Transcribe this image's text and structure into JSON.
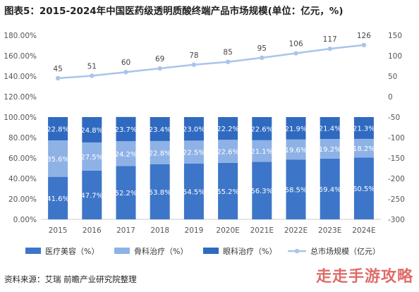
{
  "title": "图表5：2015-2024年中国医药级透明质酸终端产品市场规模(单位：亿元，%)",
  "source": "资料来源：艾瑞 前瞻产业研究院整理",
  "watermark": "走走手游攻略",
  "colors": {
    "medical_beauty": "#3d76c8",
    "orthopedic": "#8eb2e6",
    "ophthalmic": "#2f6ac0",
    "total_line": "#a9c4ec",
    "axis_text": "#555555"
  },
  "chart_data": {
    "type": "bar",
    "stacked": true,
    "categories": [
      "2015",
      "2016",
      "2017",
      "2018",
      "2019",
      "2020E",
      "2021E",
      "2022E",
      "2023E",
      "2024E"
    ],
    "y_left": {
      "ticks": [
        "0.00%",
        "20.00%",
        "40.00%",
        "60.00%",
        "80.00%",
        "100.00%",
        "120.00%",
        "140.00%",
        "160.00%",
        "180.00%"
      ],
      "range": [
        0,
        180
      ]
    },
    "y_right": {
      "ticks": [
        "150",
        "100",
        "50",
        "0",
        "-50",
        "-100",
        "-150",
        "-200",
        "-250",
        "-300"
      ],
      "range": [
        -300,
        150
      ]
    },
    "series": [
      {
        "name": "医疗美容（%）",
        "values": [
          41.6,
          47.7,
          52.2,
          53.8,
          54.5,
          55.2,
          56.3,
          58.5,
          59.4,
          60.5
        ],
        "labels": [
          "41.6%",
          "47.7%",
          "52.2%",
          "53.8%",
          "54.5%",
          "55.2%",
          "56.3%",
          "58.5%",
          "59.4%",
          "60.5%"
        ]
      },
      {
        "name": "骨科治疗（%）",
        "values": [
          35.6,
          27.5,
          24.2,
          22.8,
          22.5,
          22.6,
          21.1,
          19.6,
          19.2,
          18.2
        ],
        "labels": [
          "35.6%",
          "27.5%",
          "24.2%",
          "22.8%",
          "22.5%",
          "22.6%",
          "21.1%",
          "19.6%",
          "19.2%",
          "18.2%"
        ]
      },
      {
        "name": "眼科治疗（%）",
        "values": [
          22.8,
          24.8,
          23.7,
          23.4,
          23.0,
          22.2,
          22.6,
          21.9,
          21.4,
          21.3
        ],
        "labels": [
          "22.8%",
          "24.8%",
          "23.7%",
          "23.4%",
          "23.0%",
          "22.2%",
          "22.6%",
          "21.9%",
          "21.4%",
          "21.3%"
        ]
      }
    ],
    "line": {
      "name": "总市场规模（亿元）",
      "values": [
        45,
        51,
        60,
        69,
        78,
        85,
        95,
        106,
        117,
        126
      ],
      "labels": [
        "45",
        "51",
        "60",
        "69",
        "78",
        "85",
        "95",
        "106",
        "117",
        "126"
      ]
    },
    "legend_position": "bottom",
    "grid": false
  }
}
